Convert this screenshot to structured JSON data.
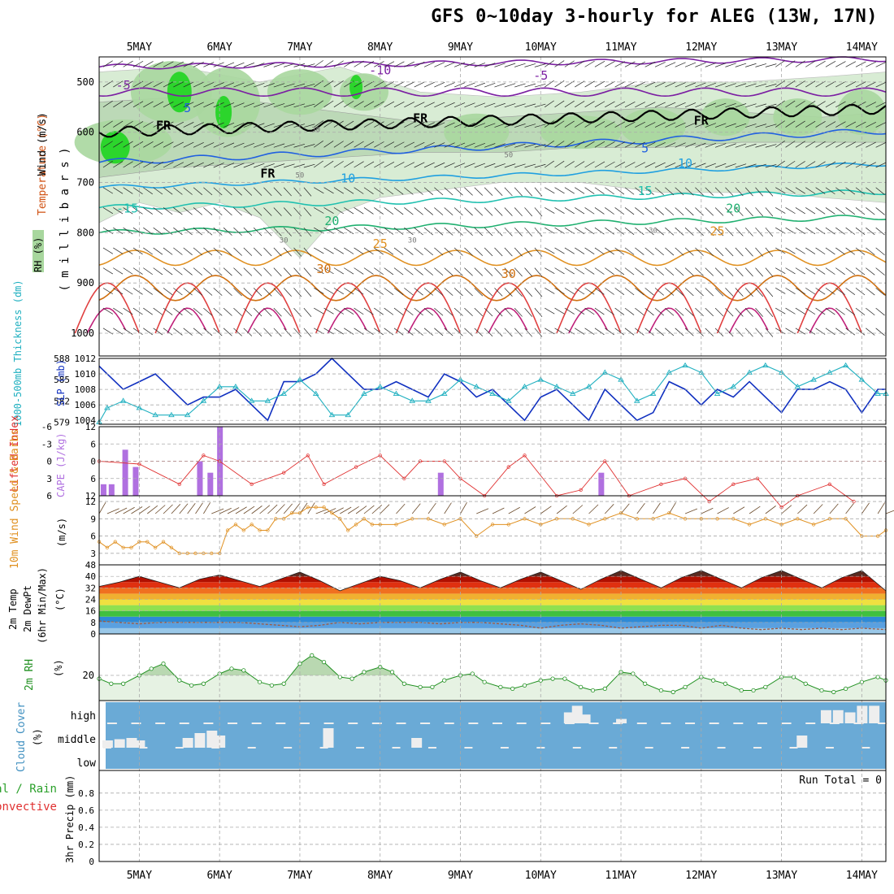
{
  "title": "GFS 0~10day 3-hourly for ALEG (13W, 17N)",
  "days": [
    "5MAY",
    "6MAY",
    "7MAY",
    "8MAY",
    "9MAY",
    "10MAY",
    "11MAY",
    "12MAY",
    "13MAY",
    "14MAY"
  ],
  "colors": {
    "grid": "#aaaaaa",
    "cloud": "#6aaad6",
    "cloud_fill": "#eeeeee",
    "rh_fill": "#a8d79e",
    "rh_dark": "#2cd52c",
    "temp_line": "#7b1fa2",
    "slp": "#1030c0",
    "thick": "#20b0c0",
    "li": "#e03030",
    "cape": "#b070e0",
    "wind": "#e09020",
    "rh2m": "#209020",
    "fr": "#000000"
  },
  "panels": {
    "upper": {
      "ylabel_wind": "Wind (m/s)",
      "ylabel_temp": "Temperature (°C)",
      "ylabel_rh": "RH (%)",
      "ylabel_mb": "( m i l l i b a r s )",
      "yticks": [
        "500",
        "600",
        "700",
        "800",
        "900",
        "1000"
      ],
      "isotherm_labels": [
        "-10",
        "-5",
        "-5",
        "5",
        "FR",
        "FR",
        "FR",
        "FR",
        "5",
        "10",
        "10",
        "15",
        "-15",
        "20",
        "20",
        "25",
        "25",
        "30",
        "30",
        "5",
        "10",
        "15"
      ],
      "rh_labels": [
        "30",
        "50",
        "30",
        "30",
        "30",
        "50"
      ]
    },
    "slp": {
      "ylabel_thick": "1000-500mb Thickness (dm)",
      "ylabel_slp": "SLP (mb)",
      "thick_ticks": [
        "588",
        "585",
        "582",
        "579"
      ],
      "slp_ticks": [
        "1012",
        "1010",
        "1008",
        "1006",
        "1004"
      ]
    },
    "li": {
      "ylabel_li": "Lifted Index",
      "ylabel_cape": "CAPE (J/kg)",
      "li_ticks": [
        "-6",
        "-3",
        "0",
        "3",
        "6"
      ],
      "cape_ticks": [
        "12",
        "6",
        "0",
        "6",
        "12"
      ]
    },
    "wind": {
      "ylabel": "10m Wind Speed & Barbs",
      "ylabel2": "(m/s)",
      "ticks": [
        "12",
        "9",
        "6",
        "3"
      ]
    },
    "temp": {
      "ylabel1": "2m Temp",
      "ylabel2": "2m DewPt",
      "ylabel3": "(6hr Min/Max)",
      "ylabel4": "(°C)",
      "ticks": [
        "48",
        "40",
        "32",
        "24",
        "16",
        "8",
        "0"
      ]
    },
    "rh2m": {
      "ylabel": "2m RH",
      "ylabel2": "(%)",
      "ticks": [
        "20"
      ]
    },
    "cloud": {
      "ylabel": "Cloud Cover",
      "ylabel2": "(%)",
      "levels": [
        "high",
        "middle",
        "low"
      ]
    },
    "precip": {
      "ylabel1": "Total / Rain",
      "ylabel2": "Convective",
      "ylabel3": "3hr Precip (mm)",
      "ticks": [
        "0.8",
        "0.6",
        "0.4",
        "0.2",
        "0"
      ],
      "run_total": "Run Total = 0"
    }
  },
  "chart_data": [
    {
      "type": "line",
      "name_note": "SLP and 1000-500mb Thickness",
      "x_days": [
        4.5,
        4.6,
        4.8,
        5.0,
        5.2,
        5.4,
        5.6,
        5.8,
        6.0,
        6.2,
        6.4,
        6.6,
        6.8,
        7.0,
        7.2,
        7.4,
        7.6,
        7.8,
        8.0,
        8.2,
        8.4,
        8.6,
        8.8,
        9.0,
        9.2,
        9.4,
        9.6,
        9.8,
        10.0,
        10.2,
        10.4,
        10.6,
        10.8,
        11.0,
        11.2,
        11.4,
        11.6,
        11.8,
        12.0,
        12.2,
        12.4,
        12.6,
        12.8,
        13.0,
        13.2,
        13.4,
        13.6,
        13.8,
        14.0,
        14.2,
        14.3
      ],
      "series": [
        {
          "name": "SLP",
          "unit": "mb",
          "values": [
            1011,
            1010,
            1008,
            1009,
            1010,
            1008,
            1006,
            1007,
            1007,
            1008,
            1006,
            1004,
            1009,
            1009,
            1010,
            1012,
            1010,
            1008,
            1008,
            1009,
            1008,
            1007,
            1010,
            1009,
            1007,
            1008,
            1006,
            1004,
            1007,
            1008,
            1006,
            1004,
            1008,
            1006,
            1004,
            1005,
            1009,
            1008,
            1006,
            1008,
            1007,
            1009,
            1007,
            1005,
            1008,
            1008,
            1009,
            1008,
            1005,
            1008,
            1008
          ]
        },
        {
          "name": "Thickness",
          "unit": "dm",
          "values": [
            579,
            581,
            582,
            581,
            580,
            580,
            580,
            582,
            584,
            584,
            582,
            582,
            583,
            585,
            583,
            580,
            580,
            583,
            584,
            583,
            582,
            582,
            583,
            585,
            584,
            583,
            582,
            584,
            585,
            584,
            583,
            584,
            586,
            585,
            582,
            583,
            586,
            587,
            586,
            583,
            584,
            586,
            587,
            586,
            584,
            585,
            586,
            587,
            585,
            583,
            583
          ]
        }
      ]
    },
    {
      "type": "bar",
      "name_note": "CAPE bars and Lifted Index",
      "cape_x_days": [
        4.55,
        4.65,
        4.82,
        4.95,
        5.75,
        5.88,
        6.0,
        8.75,
        10.75
      ],
      "cape_values": [
        2,
        2,
        8,
        5,
        6,
        4,
        12,
        4,
        4
      ],
      "li_x_days": [
        4.5,
        5.0,
        5.5,
        5.8,
        6.0,
        6.4,
        6.8,
        7.1,
        7.3,
        7.7,
        8.0,
        8.3,
        8.5,
        8.8,
        9.0,
        9.3,
        9.6,
        9.8,
        10.2,
        10.5,
        10.8,
        11.1,
        11.5,
        11.8,
        12.1,
        12.4,
        12.7,
        13.0,
        13.2,
        13.6,
        13.9
      ],
      "li_values": [
        0,
        0.5,
        4,
        -1,
        0,
        4,
        2,
        -1,
        4,
        1,
        -1,
        3,
        0,
        0,
        3,
        6,
        1,
        -1,
        6,
        5,
        0,
        6,
        4,
        3,
        7,
        4,
        3,
        8,
        6,
        4,
        7
      ]
    },
    {
      "type": "line",
      "name_note": "10m Wind Speed",
      "unit": "m/s",
      "x_days": [
        4.5,
        4.6,
        4.7,
        4.8,
        4.9,
        5.0,
        5.1,
        5.2,
        5.3,
        5.4,
        5.5,
        5.6,
        5.7,
        5.8,
        5.9,
        6.0,
        6.1,
        6.2,
        6.3,
        6.4,
        6.5,
        6.6,
        6.7,
        6.8,
        6.9,
        7.0,
        7.1,
        7.2,
        7.3,
        7.4,
        7.5,
        7.6,
        7.7,
        7.8,
        7.9,
        8.0,
        8.2,
        8.4,
        8.6,
        8.8,
        9.0,
        9.2,
        9.4,
        9.6,
        9.8,
        10.0,
        10.2,
        10.4,
        10.6,
        10.8,
        11.0,
        11.2,
        11.4,
        11.6,
        11.8,
        12.0,
        12.2,
        12.4,
        12.6,
        12.8,
        13.0,
        13.2,
        13.4,
        13.6,
        13.8,
        14.0,
        14.2,
        14.3
      ],
      "values": [
        5,
        4,
        5,
        4,
        4,
        5,
        5,
        4,
        5,
        4,
        3,
        3,
        3,
        3,
        3,
        3,
        7,
        8,
        7,
        8,
        7,
        7,
        9,
        9,
        10,
        10,
        11,
        11,
        11,
        10,
        9,
        7,
        8,
        9,
        8,
        8,
        8,
        9,
        9,
        8,
        9,
        6,
        8,
        8,
        9,
        8,
        9,
        9,
        8,
        9,
        10,
        9,
        9,
        10,
        9,
        9,
        9,
        9,
        8,
        9,
        8,
        9,
        8,
        9,
        9,
        6,
        6,
        7
      ]
    },
    {
      "type": "area",
      "name_note": "2m Temp and DewPt",
      "unit": "°C",
      "ylim": [
        0,
        48
      ],
      "x_days": [
        4.5,
        4.75,
        5.0,
        5.25,
        5.5,
        5.75,
        6.0,
        6.25,
        6.5,
        6.75,
        7.0,
        7.25,
        7.5,
        7.75,
        8.0,
        8.25,
        8.5,
        8.75,
        9.0,
        9.25,
        9.5,
        9.75,
        10.0,
        10.25,
        10.5,
        10.75,
        11.0,
        11.25,
        11.5,
        11.75,
        12.0,
        12.25,
        12.5,
        12.75,
        13.0,
        13.25,
        13.5,
        13.75,
        14.0,
        14.3
      ],
      "series": [
        {
          "name": "Temp",
          "values": [
            33,
            36,
            40,
            36,
            32,
            38,
            41,
            37,
            33,
            38,
            43,
            37,
            30,
            35,
            40,
            37,
            32,
            38,
            43,
            37,
            32,
            38,
            43,
            37,
            31,
            38,
            44,
            38,
            32,
            39,
            44,
            38,
            32,
            39,
            44,
            38,
            32,
            39,
            44,
            30
          ]
        },
        {
          "name": "DewPt",
          "values": [
            9,
            8,
            7,
            8,
            8,
            8,
            8,
            8,
            7,
            6,
            5,
            6,
            8,
            7,
            8,
            8,
            8,
            7,
            8,
            8,
            7,
            6,
            4,
            6,
            7,
            6,
            4,
            5,
            6,
            6,
            4,
            6,
            4,
            3,
            4,
            3,
            4,
            3,
            4,
            3
          ]
        }
      ]
    },
    {
      "type": "line",
      "name_note": "2m RH",
      "unit": "%",
      "x_days": [
        4.5,
        4.65,
        4.8,
        5.0,
        5.15,
        5.3,
        5.5,
        5.65,
        5.8,
        6.0,
        6.15,
        6.3,
        6.5,
        6.65,
        6.8,
        7.0,
        7.15,
        7.3,
        7.5,
        7.65,
        7.8,
        8.0,
        8.15,
        8.3,
        8.5,
        8.65,
        8.8,
        9.0,
        9.15,
        9.3,
        9.5,
        9.65,
        9.8,
        10.0,
        10.15,
        10.3,
        10.5,
        10.65,
        10.8,
        11.0,
        11.15,
        11.3,
        11.5,
        11.65,
        11.8,
        12.0,
        12.15,
        12.3,
        12.5,
        12.65,
        12.8,
        13.0,
        13.15,
        13.3,
        13.5,
        13.65,
        13.8,
        14.0,
        14.2,
        14.3
      ],
      "values": [
        18,
        15,
        15,
        20,
        24,
        27,
        17,
        14,
        15,
        21,
        24,
        23,
        16,
        14,
        15,
        27,
        32,
        28,
        19,
        18,
        22,
        25,
        22,
        15,
        13,
        13,
        17,
        20,
        21,
        16,
        13,
        12,
        14,
        17,
        18,
        18,
        13,
        11,
        12,
        22,
        21,
        15,
        11,
        10,
        13,
        19,
        17,
        15,
        11,
        11,
        13,
        19,
        19,
        15,
        11,
        10,
        12,
        16,
        19,
        17
      ]
    },
    {
      "type": "bar",
      "name_note": "Cloud cover by level",
      "unit": "%",
      "levels": [
        "high",
        "middle",
        "low"
      ],
      "high_x_days": [
        10.35,
        10.45,
        10.55,
        11.0,
        13.55,
        13.7,
        13.85,
        14.0,
        14.15
      ],
      "high_values": [
        50,
        80,
        40,
        20,
        60,
        60,
        50,
        80,
        80
      ],
      "middle_x_days": [
        4.6,
        4.75,
        4.9,
        5.0,
        5.6,
        5.75,
        5.9,
        6.0,
        7.35,
        8.45,
        13.25
      ],
      "middle_values": [
        30,
        35,
        40,
        30,
        40,
        60,
        70,
        50,
        80,
        40,
        50
      ]
    },
    {
      "type": "line",
      "name_note": "3hr Precip",
      "unit": "mm",
      "ylim": [
        0,
        1
      ],
      "x_days": [
        4.5,
        14.3
      ],
      "values": [
        0,
        0
      ]
    }
  ]
}
